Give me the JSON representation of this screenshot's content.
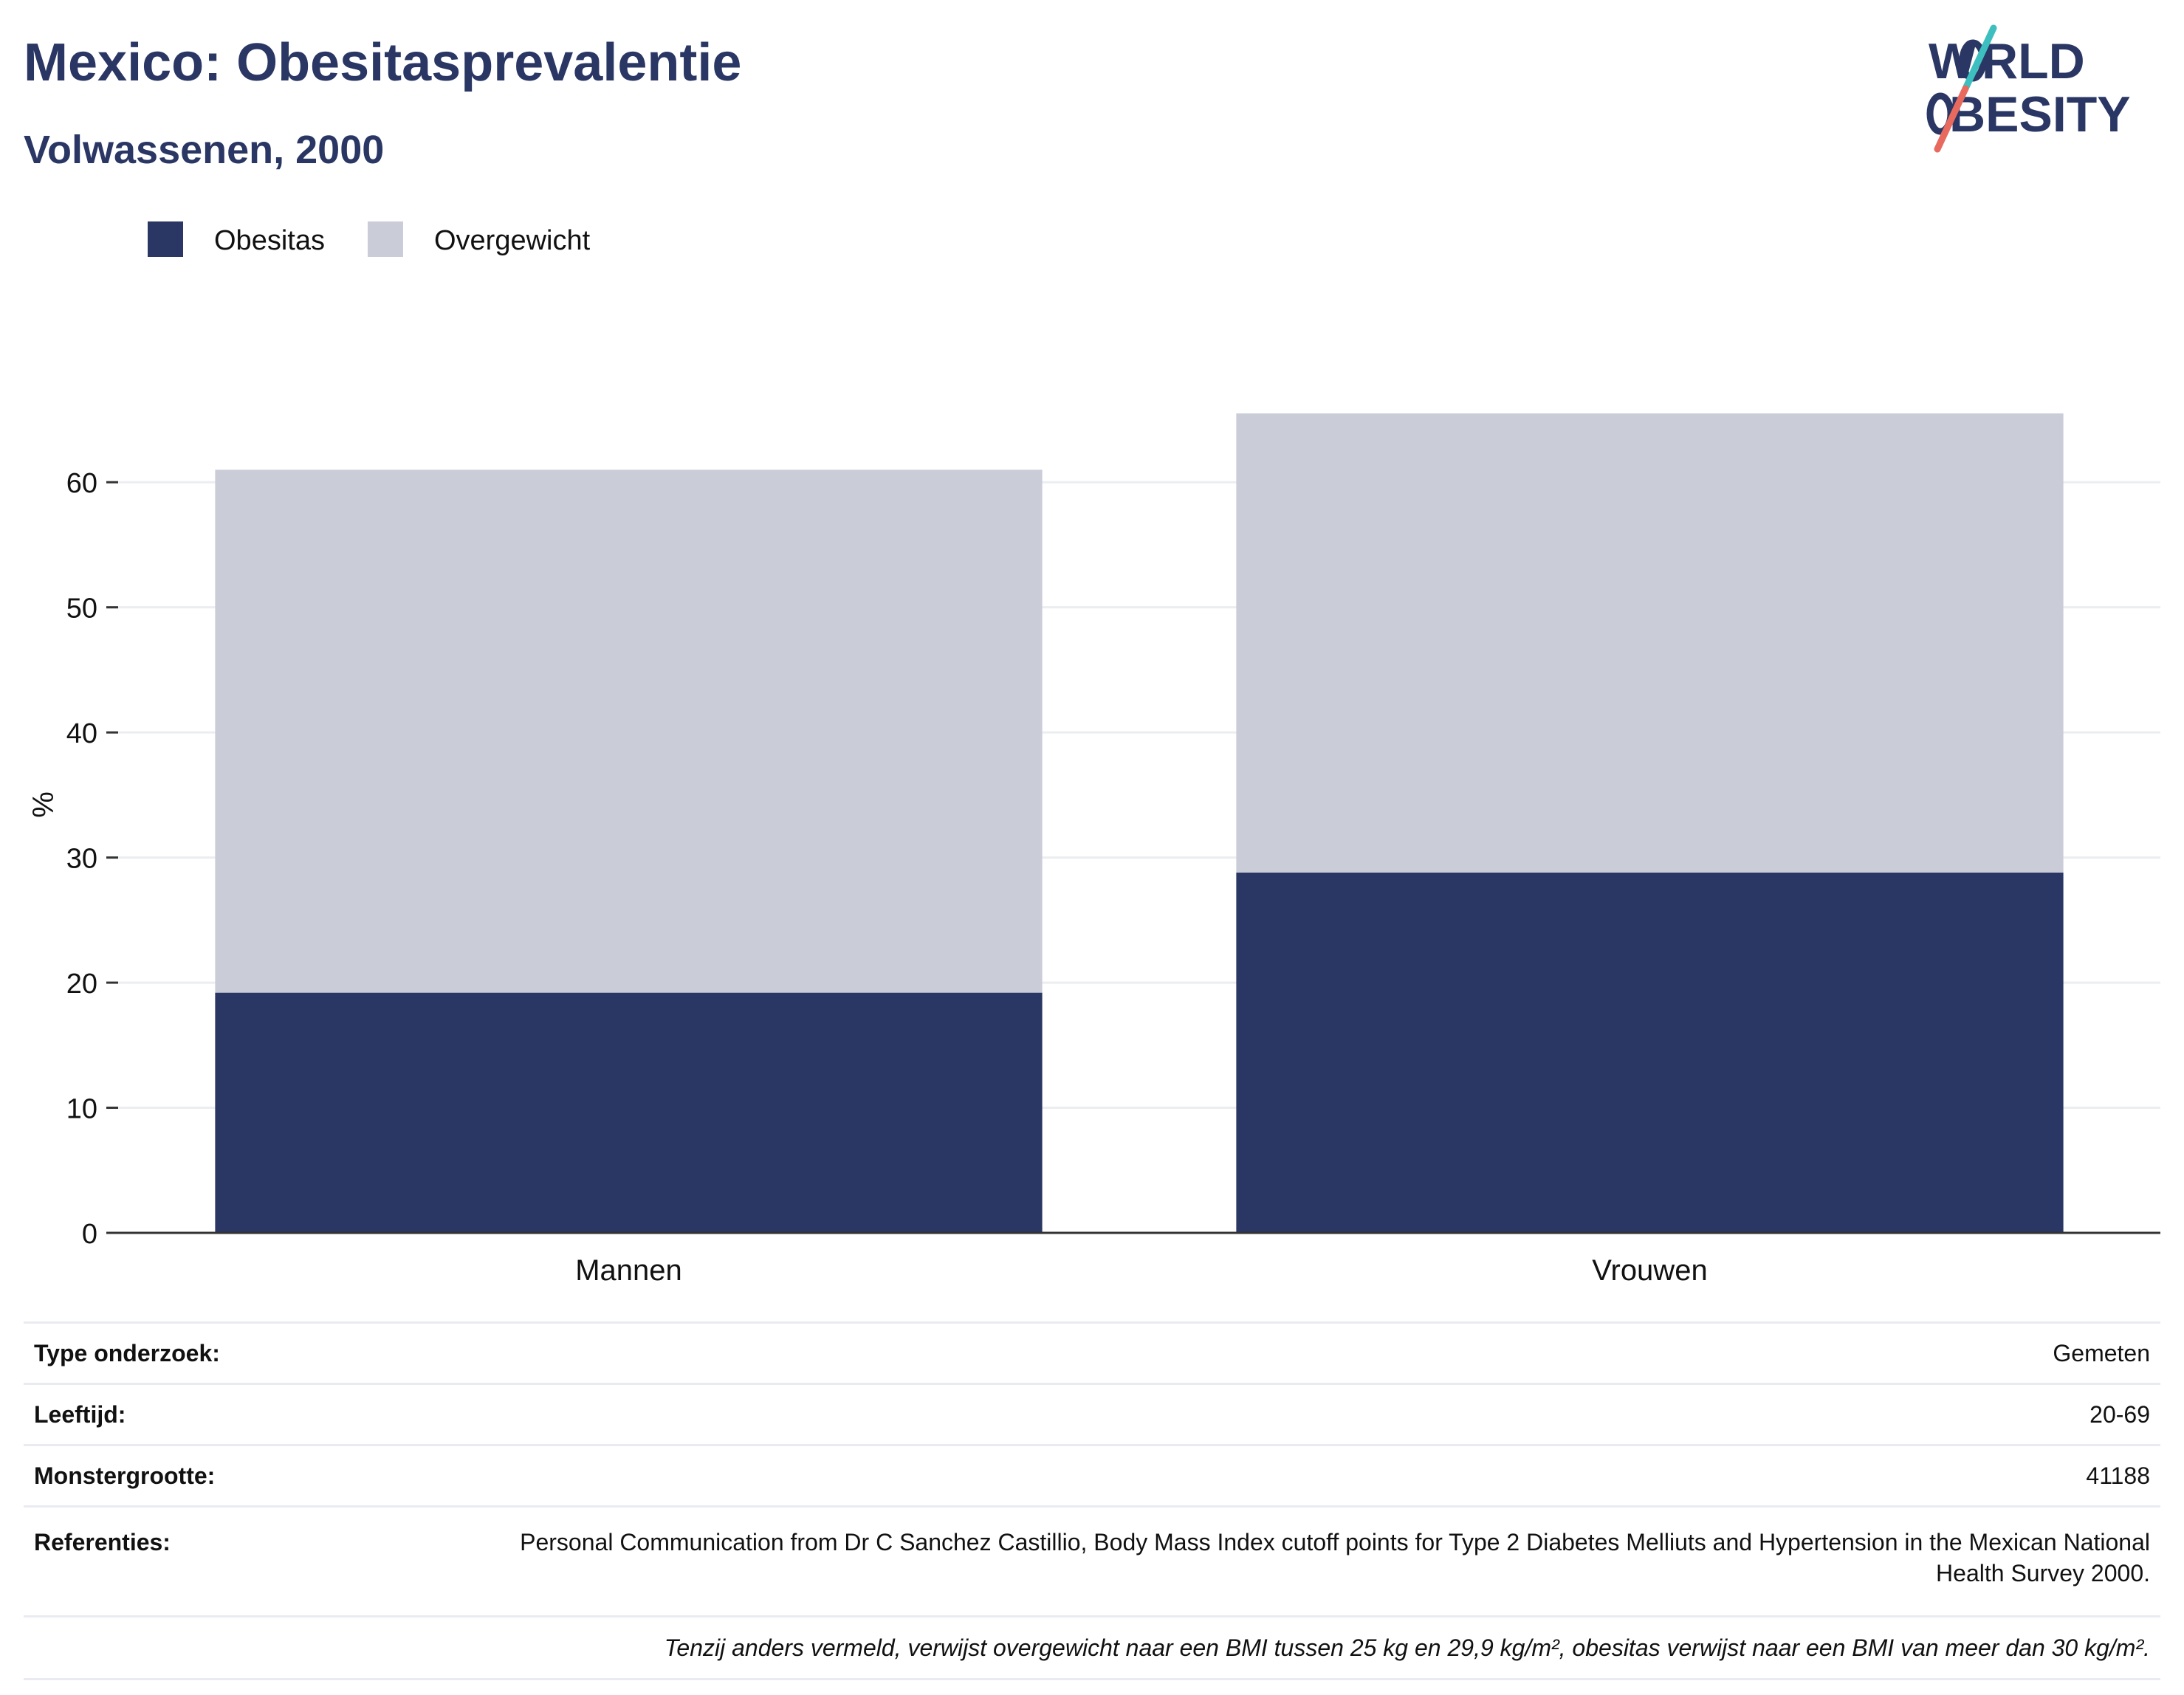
{
  "header": {
    "title": "Mexico: Obesitasprevalentie",
    "subtitle": "Volwassenen, 2000"
  },
  "logo": {
    "line1": "WORLD",
    "line2": "OBESITY",
    "accent_teal": "#3dbfbf",
    "accent_coral": "#e86a5e"
  },
  "colors": {
    "obesitas": "#2a3663",
    "overgewicht": "#cacdd8",
    "text": "#2a3663"
  },
  "chart_data": {
    "type": "bar",
    "stacked": true,
    "categories": [
      "Mannen",
      "Vrouwen"
    ],
    "series": [
      {
        "name": "Obesitas",
        "values": [
          19.2,
          28.8
        ],
        "color": "#2a3663"
      },
      {
        "name": "Overgewicht",
        "values": [
          41.8,
          36.7
        ],
        "color": "#cacdd8"
      }
    ],
    "ylabel": "%",
    "ylim": [
      0,
      65.5
    ],
    "yticks": [
      0,
      10,
      20,
      30,
      40,
      50,
      60
    ],
    "grid": true,
    "legend_position": "top-left"
  },
  "info": {
    "rows": [
      {
        "label": "Type onderzoek:",
        "value": "Gemeten"
      },
      {
        "label": "Leeftijd:",
        "value": "20-69"
      },
      {
        "label": "Monstergrootte:",
        "value": "41188"
      },
      {
        "label": "Referenties:",
        "value": "Personal Communication from Dr C Sanchez Castillio, Body Mass Index cutoff points for Type 2 Diabetes Melliuts and Hypertension in the Mexican National Health Survey 2000."
      }
    ],
    "footnote": "Tenzij anders vermeld, verwijst overgewicht naar een BMI tussen 25 kg en 29,9 kg/m², obesitas verwijst naar een BMI van meer dan 30 kg/m²."
  }
}
